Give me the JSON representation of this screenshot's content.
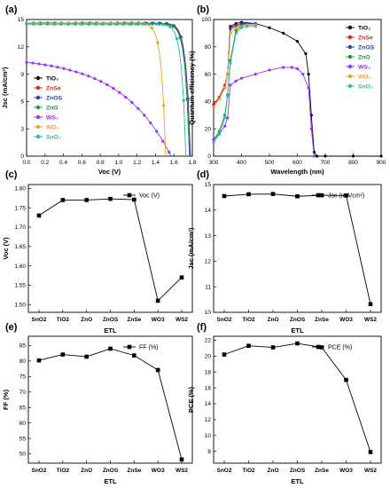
{
  "chart_data": [
    {
      "panel": "(a)",
      "type": "line",
      "xlabel": "Voc (V)",
      "ylabel": "Jsc (mA/cm²)",
      "xlim": [
        0,
        1.8
      ],
      "ylim": [
        0,
        15
      ],
      "xticks": [
        "0.0",
        "0.2",
        "0.4",
        "0.6",
        "0.8",
        "1.0",
        "1.2",
        "1.4",
        "1.6",
        "1.8"
      ],
      "yticks": [
        "0",
        "3",
        "6",
        "9",
        "12",
        "15"
      ],
      "legend": "left",
      "series": [
        {
          "name": "TiO₂",
          "color": "#000000",
          "jsc": 14.6,
          "voc": 1.77,
          "knee": 0.76
        },
        {
          "name": "ZnSe",
          "color": "#e41a1c",
          "jsc": 14.6,
          "voc": 1.77,
          "knee": 0.76
        },
        {
          "name": "ZnOS",
          "color": "#1f3fbf",
          "jsc": 14.6,
          "voc": 1.78,
          "knee": 0.76
        },
        {
          "name": "ZnO",
          "color": "#1a9641",
          "jsc": 14.5,
          "voc": 1.77,
          "knee": 0.74
        },
        {
          "name": "WS₂",
          "color": "#9b30ff",
          "jsc": 10.3,
          "voc": 1.57,
          "knee": 0.06
        },
        {
          "name": "WO₃",
          "color": "#f0a020",
          "jsc": 14.6,
          "voc": 1.51,
          "knee": 0.74
        },
        {
          "name": "SnO₂",
          "color": "#20c0a0",
          "jsc": 14.5,
          "voc": 1.73,
          "knee": 0.77
        }
      ]
    },
    {
      "panel": "(b)",
      "type": "line",
      "xlabel": "Wavelength (nm)",
      "ylabel": "Quantum efficiency (%)",
      "xlim": [
        300,
        900
      ],
      "ylim": [
        0,
        100
      ],
      "xticks": [
        "300",
        "400",
        "500",
        "600",
        "700",
        "800",
        "900"
      ],
      "yticks": [
        "0",
        "20",
        "40",
        "60",
        "80",
        "100"
      ],
      "legend": "right",
      "series": [
        {
          "name": "TiO₂",
          "color": "#000000",
          "x": [
            300,
            320,
            340,
            350,
            360,
            380,
            400,
            450,
            500,
            550,
            600,
            630,
            640,
            650,
            660,
            670,
            700,
            800,
            900
          ],
          "y": [
            38,
            43,
            50,
            60,
            95,
            97,
            98,
            97,
            94,
            90,
            84,
            75,
            60,
            30,
            3,
            0,
            0,
            0,
            0
          ]
        },
        {
          "name": "ZnSe",
          "color": "#e41a1c",
          "x": [
            300,
            320,
            340,
            350,
            360,
            380,
            400,
            420,
            450
          ],
          "y": [
            38,
            43,
            52,
            60,
            93,
            95,
            96,
            97,
            97
          ]
        },
        {
          "name": "ZnOS",
          "color": "#1f3fbf",
          "x": [
            300,
            320,
            340,
            350,
            360,
            380,
            400,
            420,
            450
          ],
          "y": [
            36,
            42,
            50,
            60,
            94,
            96,
            97,
            97,
            97
          ]
        },
        {
          "name": "ZnO",
          "color": "#1a9641",
          "x": [
            300,
            320,
            340,
            350,
            360,
            380,
            400,
            420,
            450
          ],
          "y": [
            12,
            18,
            30,
            45,
            70,
            92,
            95,
            96,
            96
          ]
        },
        {
          "name": "WS₂",
          "color": "#9b30ff",
          "x": [
            300,
            320,
            340,
            350,
            360,
            380,
            400,
            450,
            500,
            550,
            580,
            600,
            620,
            640,
            650,
            660
          ],
          "y": [
            12,
            16,
            22,
            28,
            52,
            55,
            57,
            60,
            63,
            65,
            65,
            64,
            60,
            50,
            20,
            0
          ]
        },
        {
          "name": "WO₃",
          "color": "#f0a020",
          "x": [
            300,
            320,
            340,
            350,
            360,
            380,
            400,
            420,
            450
          ],
          "y": [
            36,
            42,
            50,
            60,
            90,
            94,
            95,
            96,
            96
          ]
        },
        {
          "name": "SnO₂",
          "color": "#20c0a0",
          "x": [
            300,
            320,
            340,
            350,
            360,
            380,
            400,
            420,
            450
          ],
          "y": [
            10,
            16,
            28,
            44,
            68,
            90,
            94,
            95,
            95
          ]
        }
      ]
    },
    {
      "panel": "(c)",
      "type": "line",
      "categories": [
        "SnO2",
        "TiO2",
        "ZnO",
        "ZnOS",
        "ZnSe",
        "WO3",
        "WS2"
      ],
      "xlabel": "ETL",
      "ylabel": "Voc (V)",
      "ylim": [
        1.48,
        1.81
      ],
      "yticks": [
        "1.50",
        "1.55",
        "1.60",
        "1.65",
        "1.70",
        "1.75",
        "1.80"
      ],
      "legend": "top-right",
      "series": [
        {
          "name": "Voc (V)",
          "values": [
            1.73,
            1.77,
            1.77,
            1.773,
            1.771,
            1.51,
            1.57
          ]
        }
      ]
    },
    {
      "panel": "(d)",
      "type": "line",
      "categories": [
        "SnO2",
        "TiO2",
        "ZnO",
        "ZnOS",
        "ZnSe",
        "WO3",
        "WS2"
      ],
      "xlabel": "ETL",
      "ylabel": "Jsc (mA/cm²)",
      "ylim": [
        10,
        15
      ],
      "yticks": [
        "10",
        "11",
        "12",
        "13",
        "14",
        "15"
      ],
      "legend": "top-right",
      "series": [
        {
          "name": "Jsc (mA/cm²)",
          "values": [
            14.55,
            14.62,
            14.63,
            14.54,
            14.58,
            14.57,
            10.32
          ]
        }
      ]
    },
    {
      "panel": "(e)",
      "type": "line",
      "categories": [
        "SnO2",
        "TiO2",
        "ZnO",
        "ZnOS",
        "ZnSe",
        "WO3",
        "WS2"
      ],
      "xlabel": "ETL",
      "ylabel": "FF (%)",
      "ylim": [
        47,
        88
      ],
      "yticks": [
        "50",
        "55",
        "60",
        "65",
        "70",
        "75",
        "80",
        "85"
      ],
      "legend": "top-right",
      "series": [
        {
          "name": "FF (%)",
          "values": [
            80.2,
            82.1,
            81.4,
            84.0,
            81.8,
            77.1,
            48.2
          ]
        }
      ]
    },
    {
      "panel": "(f)",
      "type": "line",
      "categories": [
        "SnO2",
        "TiO2",
        "ZnO",
        "ZnOS",
        "ZnSe",
        "WO3",
        "WS2"
      ],
      "xlabel": "ETL",
      "ylabel": "PCE (%)",
      "ylim": [
        6.5,
        22.5
      ],
      "yticks": [
        "8",
        "10",
        "12",
        "14",
        "16",
        "18",
        "20",
        "22"
      ],
      "legend": "top-right",
      "series": [
        {
          "name": "PCE (%)",
          "values": [
            20.2,
            21.3,
            21.1,
            21.6,
            21.1,
            17.0,
            7.9
          ]
        }
      ]
    }
  ]
}
